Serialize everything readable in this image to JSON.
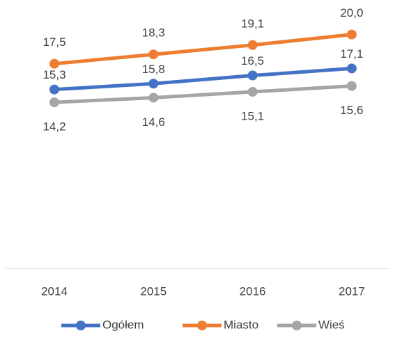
{
  "chart_data": {
    "type": "line",
    "categories": [
      "2014",
      "2015",
      "2016",
      "2017"
    ],
    "series": [
      {
        "name": "Ogółem",
        "color": "#4472c4",
        "values": [
          15.3,
          15.8,
          16.5,
          17.1
        ],
        "value_labels": [
          "15,3",
          "15,8",
          "16,5",
          "17,1"
        ]
      },
      {
        "name": "Miasto",
        "color": "#ed7d31",
        "values": [
          17.5,
          18.3,
          19.1,
          20.0
        ],
        "value_labels": [
          "17,5",
          "18,3",
          "19,1",
          "20,0"
        ]
      },
      {
        "name": "Wieś",
        "color": "#a5a5a5",
        "values": [
          14.2,
          14.6,
          15.1,
          15.6
        ],
        "value_labels": [
          "14,2",
          "14,6",
          "15,1",
          "15,6"
        ]
      }
    ],
    "ylim": [
      0,
      22
    ],
    "legend": "bottom"
  }
}
